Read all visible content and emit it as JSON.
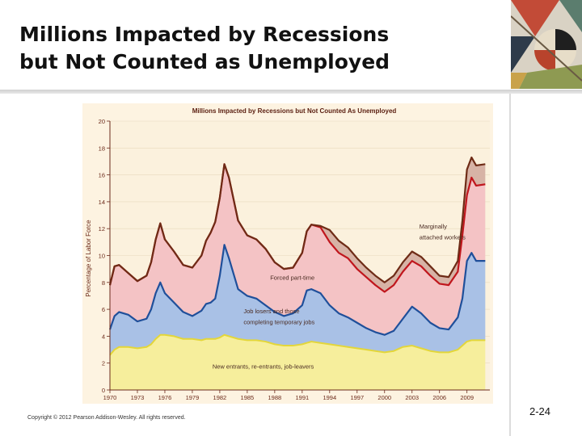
{
  "slide": {
    "title_line1": "Millions Impacted by Recessions",
    "title_line2": "but Not Counted as Unemployed",
    "copyright": "Copyright © 2012 Pearson Addison-Wesley. All rights reserved.",
    "slide_number": "2-24"
  },
  "colors": {
    "background": "#fbf1dd",
    "new_entrants": "#f6ee9c",
    "new_entrants_line": "#e3d63a",
    "job_losers": "#a9c1e6",
    "job_losers_line": "#1f4f9a",
    "forced_part_time": "#f4c3c5",
    "forced_part_time_line": "#c0161d",
    "marginally_attached": "#d7b3a6",
    "marginally_attached_line": "#6e2b16"
  },
  "chart_data": {
    "type": "area",
    "title": "Millions Impacted by Recessions but Not Counted As Unemployed",
    "xlabel": "",
    "ylabel": "Percentage of Labor Force",
    "ylim": [
      0,
      20
    ],
    "xlim": [
      1970,
      2011.5
    ],
    "yticks": [
      0,
      2,
      4,
      6,
      8,
      10,
      12,
      14,
      16,
      18,
      20
    ],
    "xticks": [
      1970,
      1973,
      1976,
      1979,
      1982,
      1985,
      1988,
      1991,
      1994,
      1997,
      2000,
      2003,
      2006,
      2009
    ],
    "grid": true,
    "stacked": true,
    "x": [
      1970,
      1970.5,
      1971,
      1972,
      1973,
      1974,
      1974.5,
      1975,
      1975.5,
      1976,
      1977,
      1978,
      1979,
      1980,
      1980.5,
      1981,
      1981.5,
      1982,
      1982.5,
      1983,
      1984,
      1985,
      1986,
      1987,
      1988,
      1989,
      1990,
      1991,
      1991.5,
      1992,
      1993,
      1994,
      1995,
      1996,
      1997,
      1998,
      1999,
      2000,
      2001,
      2002,
      2003,
      2004,
      2005,
      2006,
      2007,
      2008,
      2008.5,
      2009,
      2009.5,
      2010,
      2011
    ],
    "series": [
      {
        "name": "New entrants, re-entrants, job-leavers",
        "values": [
          2.6,
          3.0,
          3.2,
          3.2,
          3.1,
          3.2,
          3.4,
          3.8,
          4.1,
          4.1,
          4.0,
          3.8,
          3.8,
          3.7,
          3.8,
          3.8,
          3.8,
          3.9,
          4.1,
          4.0,
          3.8,
          3.7,
          3.7,
          3.6,
          3.4,
          3.3,
          3.3,
          3.4,
          3.5,
          3.6,
          3.5,
          3.4,
          3.3,
          3.2,
          3.1,
          3.0,
          2.9,
          2.8,
          2.9,
          3.2,
          3.3,
          3.1,
          2.9,
          2.8,
          2.8,
          3.0,
          3.3,
          3.6,
          3.7,
          3.7,
          3.7
        ]
      },
      {
        "name": "Job losers and those completing temporary jobs",
        "values": [
          4.5,
          5.5,
          5.8,
          5.6,
          5.1,
          5.3,
          6.0,
          7.2,
          8.0,
          7.2,
          6.5,
          5.8,
          5.5,
          5.9,
          6.4,
          6.5,
          6.8,
          8.5,
          10.8,
          9.8,
          7.5,
          7.0,
          6.8,
          6.3,
          5.8,
          5.5,
          5.7,
          6.3,
          7.4,
          7.5,
          7.2,
          6.3,
          5.7,
          5.4,
          5.0,
          4.6,
          4.3,
          4.1,
          4.4,
          5.3,
          6.2,
          5.7,
          5.0,
          4.6,
          4.5,
          5.4,
          6.8,
          9.6,
          10.2,
          9.6,
          9.6
        ]
      },
      {
        "name": "Forced part-time",
        "values": [
          7.8,
          9.2,
          9.3,
          8.7,
          8.1,
          8.5,
          9.5,
          11.2,
          12.4,
          11.2,
          10.3,
          9.3,
          9.1,
          10.0,
          11.1,
          11.7,
          12.5,
          14.3,
          16.8,
          15.8,
          12.6,
          11.5,
          11.2,
          10.5,
          9.5,
          9.0,
          9.1,
          10.2,
          11.8,
          12.3,
          12.1,
          11.0,
          10.2,
          9.8,
          9.0,
          8.4,
          7.8,
          7.3,
          7.8,
          8.8,
          9.6,
          9.2,
          8.5,
          7.9,
          7.8,
          8.8,
          11.5,
          14.5,
          15.8,
          15.2,
          15.3
        ]
      },
      {
        "name": "Marginally attached workers",
        "values": [
          7.8,
          9.2,
          9.3,
          8.7,
          8.1,
          8.5,
          9.5,
          11.2,
          12.4,
          11.2,
          10.3,
          9.3,
          9.1,
          10.0,
          11.1,
          11.7,
          12.5,
          14.3,
          16.8,
          15.8,
          12.6,
          11.5,
          11.2,
          10.5,
          9.5,
          9.0,
          9.1,
          10.2,
          11.8,
          12.3,
          12.2,
          11.9,
          11.1,
          10.6,
          9.8,
          9.1,
          8.5,
          8.0,
          8.5,
          9.5,
          10.3,
          9.9,
          9.2,
          8.5,
          8.4,
          9.6,
          12.6,
          16.4,
          17.3,
          16.7,
          16.8
        ]
      }
    ],
    "annotations": [
      {
        "text": "New entrants, re-entrants, job-leavers",
        "x": 1981.2,
        "y": 1.6
      },
      {
        "text": "Job losers and those",
        "x": 1984.6,
        "y": 5.7
      },
      {
        "text": "completing temporary jobs",
        "x": 1984.6,
        "y": 4.9
      },
      {
        "text": "Forced part-time",
        "x": 1987.5,
        "y": 8.2
      },
      {
        "text": "Marginally",
        "x": 2003.8,
        "y": 12.0
      },
      {
        "text": "attached workers",
        "x": 2003.8,
        "y": 11.2
      }
    ]
  }
}
